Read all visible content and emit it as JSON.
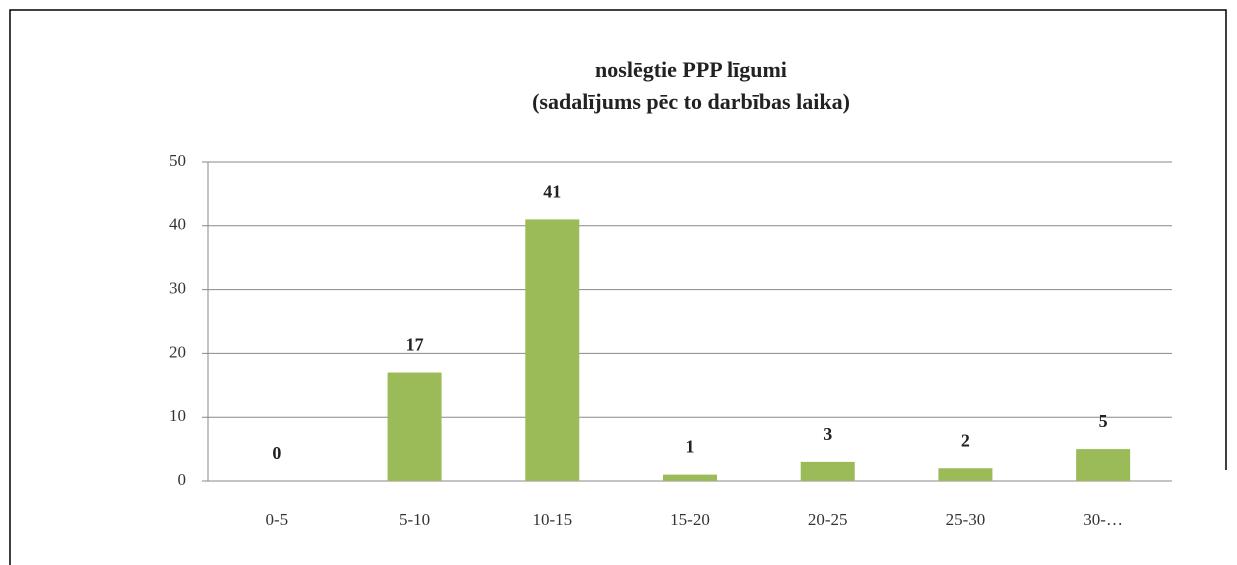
{
  "chart_data": {
    "type": "bar",
    "title": "noslēgtie PPP līgumi",
    "subtitle": "(sadalījums pēc to darbības laika)",
    "categories": [
      "0-5",
      "5-10",
      "10-15",
      "15-20",
      "20-25",
      "25-30",
      "30-…"
    ],
    "values": [
      0,
      17,
      41,
      1,
      3,
      2,
      5
    ],
    "color": "#9bbb59",
    "ylim": [
      0,
      50
    ],
    "yticks": [
      0,
      10,
      20,
      30,
      40,
      50
    ],
    "grid": true
  }
}
